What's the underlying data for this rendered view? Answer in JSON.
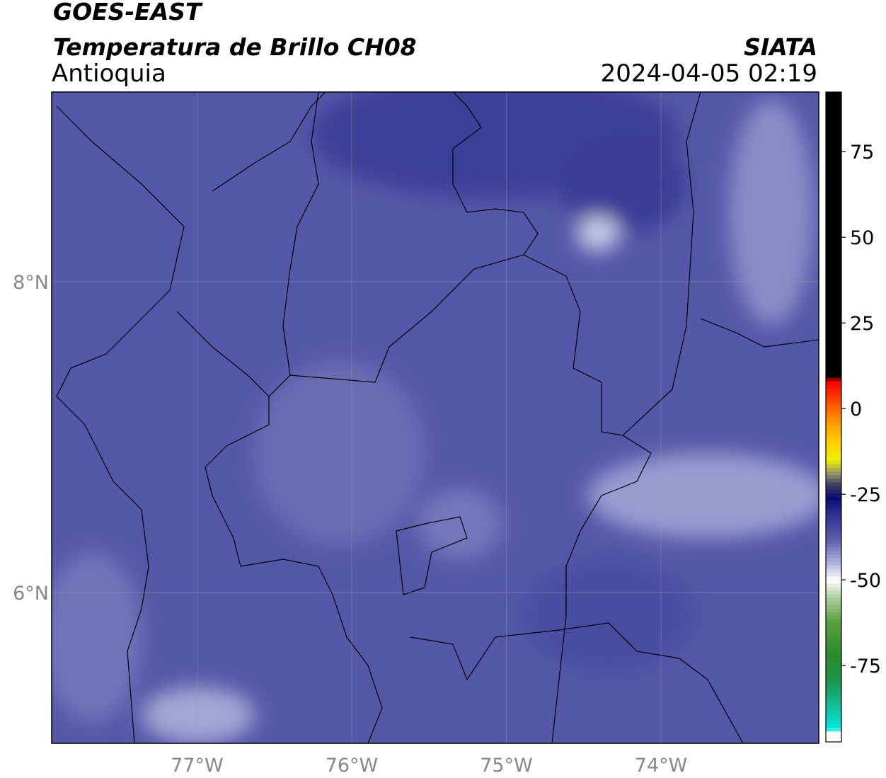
{
  "header": {
    "title": "GOES-EAST",
    "subtitle": "Temperatura de Brillo CH08",
    "region": "Antioquia",
    "source": "SIATA",
    "datetime": "2024-04-05 02:19"
  },
  "map": {
    "lonlim": [
      -77.94,
      -72.98
    ],
    "latlim": [
      5.03,
      9.22
    ],
    "lon_ticks": [
      {
        "value": -77,
        "label": "77°W"
      },
      {
        "value": -76,
        "label": "76°W"
      },
      {
        "value": -75,
        "label": "75°W"
      },
      {
        "value": -74,
        "label": "74°W"
      }
    ],
    "lat_ticks": [
      {
        "value": 8,
        "label": "8°N"
      },
      {
        "value": 6,
        "label": "6°N"
      }
    ],
    "grid": true
  },
  "colorbar": {
    "lim": [
      -97.3,
      92.4
    ],
    "ticks": [
      75,
      50,
      25,
      0,
      -25,
      -50,
      -75
    ]
  }
}
